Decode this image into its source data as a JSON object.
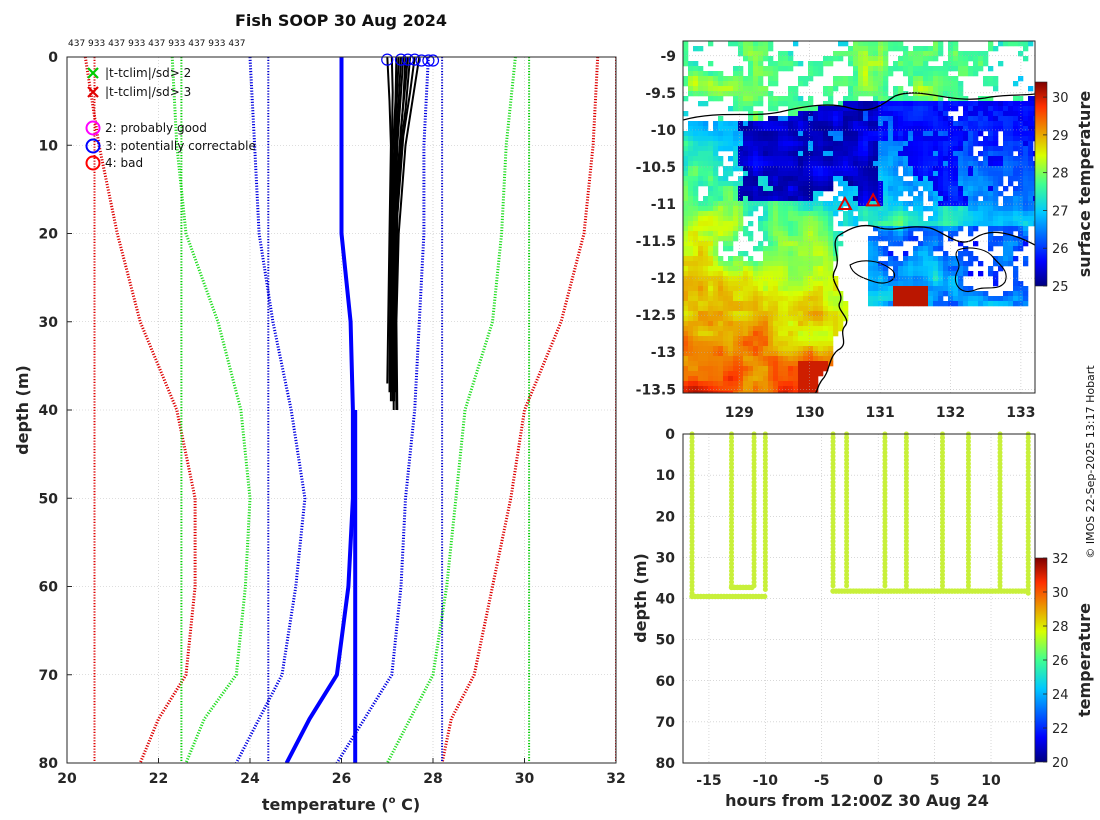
{
  "title": "Fish SOOP 30 Aug 2024",
  "id_labels": "437 933 437 933 437 933 437 933 437",
  "copyright": "© IMOS 22-Sep-2025 13:17 Hobart",
  "chart_data": [
    {
      "name": "profile",
      "type": "line",
      "xlabel": "temperature (°C)",
      "xlabel_sup": "o",
      "ylabel": "depth (m)",
      "xlim": [
        20,
        32
      ],
      "ylim": [
        80,
        0
      ],
      "xticks": [
        20,
        22,
        24,
        26,
        28,
        30,
        32
      ],
      "yticks": [
        0,
        10,
        20,
        30,
        40,
        50,
        60,
        70,
        80
      ],
      "legend": [
        {
          "marker": "x",
          "color": "#00cc00",
          "label": "|t-tclim|/sd> 2"
        },
        {
          "marker": "x",
          "color": "#e00000",
          "label": "|t-tclim|/sd> 3"
        },
        {
          "marker": "o",
          "color": "#ff00ff",
          "label": "2: probably good"
        },
        {
          "marker": "o",
          "color": "#0000ff",
          "label": "3: potentially correctable"
        },
        {
          "marker": "o",
          "color": "#ff0000",
          "label": "4: bad"
        }
      ],
      "series": [
        {
          "name": "clim-mean",
          "color": "#0000ff",
          "style": "solid",
          "width": 4,
          "points": [
            [
              26.0,
              0
            ],
            [
              26.0,
              10
            ],
            [
              26.0,
              20
            ],
            [
              26.2,
              30
            ],
            [
              26.25,
              40
            ],
            [
              26.25,
              50
            ],
            [
              26.15,
              60
            ],
            [
              25.9,
              70
            ],
            [
              25.3,
              75
            ],
            [
              24.8,
              80
            ]
          ]
        },
        {
          "name": "clim-mean-upper",
          "color": "#0000ff",
          "style": "solid",
          "width": 4,
          "points": [
            [
              26.3,
              40
            ],
            [
              26.3,
              50
            ],
            [
              26.3,
              60
            ],
            [
              26.3,
              70
            ],
            [
              26.3,
              80
            ]
          ]
        },
        {
          "name": "clim-1sd-lo",
          "color": "#0000e0",
          "style": "dotted",
          "width": 3,
          "points": [
            [
              24.0,
              0
            ],
            [
              24.1,
              10
            ],
            [
              24.2,
              20
            ],
            [
              24.5,
              30
            ],
            [
              24.9,
              40
            ],
            [
              25.2,
              50
            ],
            [
              25.0,
              60
            ],
            [
              24.7,
              70
            ],
            [
              24.2,
              75
            ],
            [
              23.7,
              80
            ]
          ]
        },
        {
          "name": "clim-1sd-hi",
          "color": "#0000e0",
          "style": "dotted",
          "width": 3,
          "points": [
            [
              27.9,
              0
            ],
            [
              27.8,
              10
            ],
            [
              27.8,
              20
            ],
            [
              27.7,
              30
            ],
            [
              27.6,
              40
            ],
            [
              27.4,
              50
            ],
            [
              27.3,
              60
            ],
            [
              27.1,
              70
            ],
            [
              26.5,
              75
            ],
            [
              25.9,
              80
            ]
          ]
        },
        {
          "name": "clim-2sd-lo",
          "color": "#22dd22",
          "style": "dotted",
          "width": 3,
          "points": [
            [
              22.3,
              0
            ],
            [
              22.4,
              10
            ],
            [
              22.6,
              20
            ],
            [
              23.3,
              30
            ],
            [
              23.8,
              40
            ],
            [
              24.0,
              50
            ],
            [
              23.9,
              60
            ],
            [
              23.7,
              70
            ],
            [
              23.0,
              75
            ],
            [
              22.6,
              80
            ]
          ]
        },
        {
          "name": "clim-2sd-hi",
          "color": "#22dd22",
          "style": "dotted",
          "width": 3,
          "points": [
            [
              29.8,
              0
            ],
            [
              29.6,
              10
            ],
            [
              29.5,
              20
            ],
            [
              29.3,
              30
            ],
            [
              28.7,
              40
            ],
            [
              28.5,
              50
            ],
            [
              28.3,
              60
            ],
            [
              28.0,
              70
            ],
            [
              27.5,
              75
            ],
            [
              27.0,
              80
            ]
          ]
        },
        {
          "name": "clim-3sd-lo",
          "color": "#dd0000",
          "style": "dotted",
          "width": 3,
          "points": [
            [
              20.4,
              0
            ],
            [
              20.7,
              10
            ],
            [
              21.1,
              20
            ],
            [
              21.6,
              30
            ],
            [
              22.4,
              40
            ],
            [
              22.8,
              50
            ],
            [
              22.8,
              60
            ],
            [
              22.6,
              70
            ],
            [
              22.0,
              75
            ],
            [
              21.6,
              80
            ]
          ]
        },
        {
          "name": "clim-3sd-hi",
          "color": "#dd0000",
          "style": "dotted",
          "width": 3,
          "points": [
            [
              31.6,
              0
            ],
            [
              31.5,
              10
            ],
            [
              31.3,
              20
            ],
            [
              30.8,
              30
            ],
            [
              30.0,
              40
            ],
            [
              29.7,
              50
            ],
            [
              29.3,
              60
            ],
            [
              28.9,
              70
            ],
            [
              28.4,
              75
            ],
            [
              28.2,
              80
            ]
          ]
        },
        {
          "name": "min-max-lo",
          "color": "#0000cc",
          "style": "dotted",
          "width": 2,
          "points": [
            [
              24.4,
              0
            ],
            [
              24.4,
              80
            ]
          ]
        },
        {
          "name": "min-max-hi",
          "color": "#0000cc",
          "style": "dotted",
          "width": 2,
          "points": [
            [
              28.2,
              0
            ],
            [
              28.2,
              80
            ]
          ]
        },
        {
          "name": "abs-lo-green",
          "color": "#00cc00",
          "style": "dotted",
          "width": 2,
          "points": [
            [
              22.5,
              0
            ],
            [
              22.5,
              80
            ]
          ]
        },
        {
          "name": "abs-hi-green",
          "color": "#00cc00",
          "style": "dotted",
          "width": 2,
          "points": [
            [
              30.1,
              0
            ],
            [
              30.1,
              80
            ]
          ]
        },
        {
          "name": "abs-lo-red",
          "color": "#dd0000",
          "style": "dotted",
          "width": 2,
          "points": [
            [
              20.6,
              0
            ],
            [
              20.6,
              80
            ]
          ]
        },
        {
          "name": "abs-hi-red",
          "color": "#dd0000",
          "style": "dotted",
          "width": 2,
          "points": [
            [
              32.0,
              0
            ],
            [
              32.0,
              80
            ]
          ]
        }
      ],
      "profiles": [
        [
          [
            27.0,
            0
          ],
          [
            27.05,
            5
          ],
          [
            27.08,
            10
          ],
          [
            27.05,
            20
          ],
          [
            27.02,
            30
          ],
          [
            27.0,
            37
          ]
        ],
        [
          [
            27.1,
            0
          ],
          [
            27.12,
            4
          ],
          [
            27.1,
            10
          ],
          [
            27.08,
            20
          ],
          [
            27.06,
            30
          ],
          [
            27.05,
            38
          ]
        ],
        [
          [
            27.2,
            0
          ],
          [
            27.18,
            5
          ],
          [
            27.12,
            11
          ],
          [
            27.1,
            20
          ],
          [
            27.08,
            30
          ],
          [
            27.08,
            39
          ]
        ],
        [
          [
            27.25,
            0
          ],
          [
            27.2,
            6
          ],
          [
            27.15,
            12
          ],
          [
            27.12,
            20
          ],
          [
            27.1,
            30
          ],
          [
            27.1,
            38
          ]
        ],
        [
          [
            27.3,
            0
          ],
          [
            27.25,
            5
          ],
          [
            27.2,
            9
          ],
          [
            27.15,
            18
          ],
          [
            27.12,
            30
          ],
          [
            27.12,
            39
          ]
        ],
        [
          [
            27.35,
            0
          ],
          [
            27.3,
            4
          ],
          [
            27.22,
            10
          ],
          [
            27.16,
            20
          ],
          [
            27.14,
            30
          ],
          [
            27.14,
            40
          ]
        ],
        [
          [
            27.4,
            0
          ],
          [
            27.35,
            5
          ],
          [
            27.25,
            12
          ],
          [
            27.18,
            20
          ],
          [
            27.15,
            30
          ],
          [
            27.15,
            39
          ]
        ],
        [
          [
            27.5,
            0
          ],
          [
            27.4,
            6
          ],
          [
            27.3,
            10
          ],
          [
            27.2,
            20
          ],
          [
            27.18,
            30
          ],
          [
            27.2,
            40
          ]
        ],
        [
          [
            27.6,
            0
          ],
          [
            27.5,
            4
          ],
          [
            27.35,
            9
          ],
          [
            27.22,
            18
          ],
          [
            27.18,
            30
          ],
          [
            27.18,
            38
          ]
        ],
        [
          [
            27.7,
            0
          ],
          [
            27.55,
            5
          ],
          [
            27.4,
            10
          ],
          [
            27.25,
            20
          ],
          [
            27.2,
            30
          ],
          [
            27.22,
            40
          ]
        ],
        [
          [
            27.45,
            0
          ],
          [
            27.4,
            3
          ],
          [
            27.3,
            8
          ],
          [
            27.2,
            15
          ],
          [
            27.15,
            25
          ],
          [
            27.12,
            37
          ]
        ]
      ],
      "flag_circles": [
        [
          27.0,
          0.3
        ],
        [
          27.3,
          0.3
        ],
        [
          27.45,
          0.3
        ],
        [
          27.6,
          0.3
        ],
        [
          27.75,
          0.4
        ],
        [
          27.9,
          0.4
        ],
        [
          28.0,
          0.4
        ]
      ]
    },
    {
      "name": "sst-map",
      "type": "heatmap",
      "xticks": [
        "129",
        "130",
        "131",
        "132",
        "133"
      ],
      "yticks": [
        "-9",
        "-9.5",
        "-10",
        "-10.5",
        "-11",
        "-11.5",
        "-12",
        "-12.5",
        "-13",
        "-13.5"
      ],
      "xlim": [
        128.2,
        133.2
      ],
      "ylim": [
        -13.55,
        -8.8
      ],
      "colorbar_label": "surface temperature",
      "colorbar_ticks": [
        "25",
        "26",
        "27",
        "28",
        "29",
        "30"
      ],
      "clim": [
        25,
        30.4
      ],
      "drop_markers": [
        [
          130.5,
          -11.0
        ],
        [
          130.9,
          -10.95
        ]
      ]
    },
    {
      "name": "depth-time",
      "type": "scatter",
      "xlabel": "hours from 12:00Z 30 Aug 24",
      "ylabel": "depth (m)",
      "xticks": [
        "-15",
        "-10",
        "-5",
        "0",
        "5",
        "10"
      ],
      "yticks": [
        "0",
        "10",
        "20",
        "30",
        "40",
        "50",
        "60",
        "70",
        "80"
      ],
      "xlim": [
        -17.3,
        13.9
      ],
      "ylim": [
        80,
        0
      ],
      "colorbar_label": "temperature",
      "colorbar_ticks": [
        "20",
        "22",
        "24",
        "26",
        "28",
        "30",
        "32"
      ],
      "clim": [
        20,
        32
      ],
      "point_color": "#c8f03a",
      "casts": [
        {
          "t": -16.5,
          "bottom": 39
        },
        {
          "t": -13.0,
          "bottom": 37
        },
        {
          "t": -11.0,
          "bottom": 37
        },
        {
          "t": -10.0,
          "bottom": 38
        },
        {
          "t": -4.0,
          "bottom": 37
        },
        {
          "t": -2.8,
          "bottom": 37
        },
        {
          "t": 0.6,
          "bottom": 37
        },
        {
          "t": 2.5,
          "bottom": 38
        },
        {
          "t": 5.7,
          "bottom": 38
        },
        {
          "t": 8.0,
          "bottom": 38
        },
        {
          "t": 10.8,
          "bottom": 38
        },
        {
          "t": 13.3,
          "bottom": 39
        }
      ],
      "bottom_segments": [
        {
          "t0": -16.5,
          "t1": -10.0,
          "depth": 39.5
        },
        {
          "t0": -13.0,
          "t1": -11.0,
          "depth": 37.3
        },
        {
          "t0": -4.0,
          "t1": 13.3,
          "depth": 38.2
        }
      ]
    }
  ]
}
